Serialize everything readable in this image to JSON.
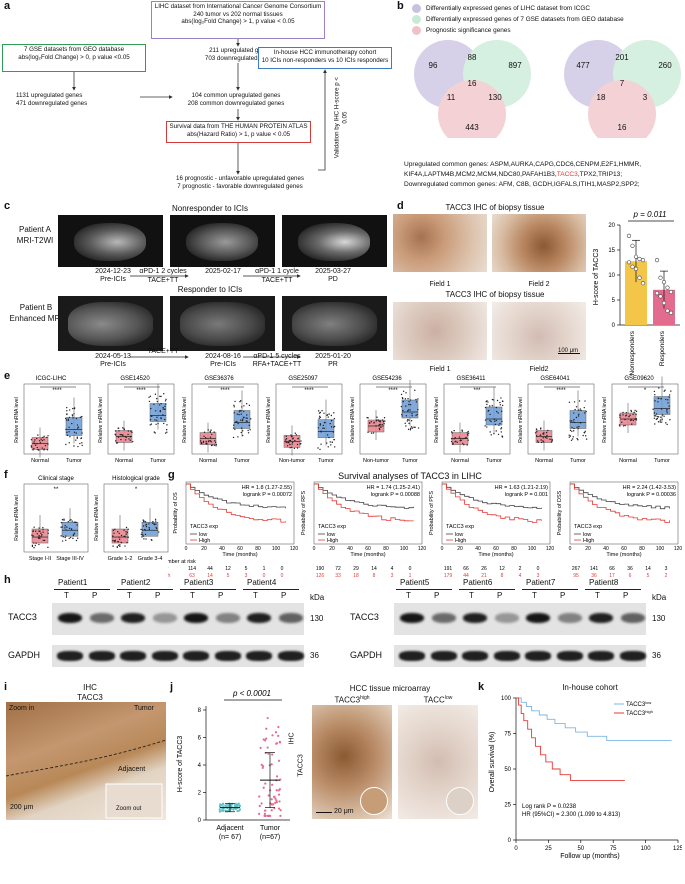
{
  "panels": {
    "a": "a",
    "b": "b",
    "c": "c",
    "d": "d",
    "e": "e",
    "f": "f",
    "g": "g",
    "h": "h",
    "i": "i",
    "j": "j",
    "k": "k"
  },
  "a": {
    "licc": [
      "LIHC dataset from International Cancer Genome Consortium",
      "240 tumor vs 202 normal tissues",
      "abs(log₂Fold Change) > 1, p value < 0.05"
    ],
    "gse": [
      "7 GSE datasets from GEO database",
      "abs(log₂Fold Change) > 0, p value <0.05"
    ],
    "gse_counts": [
      "1131 upregulated genes",
      "471 downregulated genes"
    ],
    "icgc_counts": [
      "211 upregulated genes",
      "703 downregulated genes"
    ],
    "common": [
      "104 common upregulated genes",
      "208 common downregulated genes"
    ],
    "hpa": [
      "Survival data from THE HUMAN PROTEIN ATLAS",
      "abs(Hazard Ratio) > 1, p value < 0.05"
    ],
    "prog": [
      "16 prognostic - unfavorable upregulated genes",
      "7 prognostic - favorable downregulated genes"
    ],
    "cohort": [
      "In-house HCC immunotherapy cohort",
      "10 ICIs non-responders vs 10 ICIs responders"
    ],
    "vertical": "Validation by IHC H-score p < 0.05"
  },
  "b": {
    "legend": [
      "Differentially expressed genes of LIHC dataset from ICGC",
      "Differentially expressed genes of 7 GSE datasets from GEO database",
      "Prognostic significance genes"
    ],
    "legend_colors": [
      "#c9c1e2",
      "#c8ebd6",
      "#efc2c8"
    ],
    "venn1": [
      "96",
      "88",
      "897",
      "16",
      "11",
      "130",
      "443"
    ],
    "venn2": [
      "477",
      "201",
      "260",
      "7",
      "18",
      "3",
      "16"
    ],
    "genes_up": "Upregulated common genes: ASPM,AURKA,CAPG,CDC6,CENPM,E2F1,HMMR,",
    "genes_up2a": "KIF4A,LAPTM4B,MCM2,MCM4,NDC80,PAFAH1B3,",
    "genes_up2b": "TACC3",
    "genes_up2c": ",TPX2,TRIP13;",
    "genes_down": "Downregulated common genes: AFM, C8B, GCDH,IGFALS,ITIH1,MASP2,SPP2;"
  },
  "c": {
    "title1": "Nonresponder to ICIs",
    "title2": "Responder to ICIs",
    "patientA": [
      "Patient A",
      "MRI-T2WI"
    ],
    "patientB": [
      "Patient B",
      "Enhanced MRI"
    ],
    "tlA": {
      "d1": "2024-12-23",
      "l1": "Pre-ICIs",
      "a1": "αPD-1 2 cycles",
      "b1": "TACE+TT",
      "d2": "2025-02-17",
      "a2": "αPD-1 1 cycle",
      "b2": "TACE+TT",
      "d3": "2025-03-27",
      "l3": "PD"
    },
    "tlB": {
      "d1": "2024-05-13",
      "l1": "Pre-ICIs",
      "b1": "TACE+TT",
      "d2": "2024-08-16",
      "l2": "Pre-ICIs",
      "a2": "αPD-1 5 cycles",
      "b2": "RFA+TACE+TT",
      "d3": "2025-01-20",
      "l3": "PR"
    }
  },
  "d": {
    "title1": "TACC3 IHC of biopsy tissue",
    "title2": "TACC3 IHC of biopsy tissue",
    "f1": "Field 1",
    "f2": "Field 2",
    "f3": "Field 1",
    "f4": "Field2",
    "scale": "100 μm",
    "p": "p = 0.011",
    "ylabel": "H-score of TACC3",
    "xcats": [
      "Nonresponders",
      "Responders"
    ]
  },
  "e": {
    "titles": [
      "ICGC-LIHC",
      "GSE14520",
      "GSE36376",
      "GSE25097",
      "GSE54236",
      "GSE36411",
      "GSE64041",
      "GSE09620"
    ],
    "ylabel": "Relative mRNA level",
    "xl": [
      "Normal",
      "Normal",
      "Normal",
      "Non-tumor",
      "Non-tumor",
      "Normal",
      "Normal",
      "Normal"
    ],
    "xr": "Tumor",
    "sig": [
      "****",
      "****",
      "****",
      "****",
      "****",
      "***",
      "****",
      "*"
    ]
  },
  "f": {
    "titles": [
      "Clinical stage",
      "Histological grade"
    ],
    "ylabel": "Relative mRNA level",
    "x1": [
      "Stage I-II",
      "Stage III-IV"
    ],
    "x2": [
      "Grade 1-2",
      "Grade 3-4"
    ],
    "sig": [
      "**",
      "*"
    ]
  },
  "g": {
    "title": "Survival analyses of TACC3 in LIHC",
    "plots": [
      {
        "hr": "HR = 1.8 (1.27-2.55)",
        "lr": "logrank P = 0.00072",
        "y": "Probability of OS",
        "low": [
          "114",
          "44",
          "12",
          "5",
          "1",
          "0"
        ],
        "high": [
          "63",
          "14",
          "5",
          "3",
          "0",
          "0"
        ],
        "ticks": [
          "0",
          "20",
          "40",
          "60",
          "80",
          "100",
          "120"
        ]
      },
      {
        "hr": "HR = 1.74 (1.25-2.41)",
        "lr": "logrank P = 0.00088",
        "y": "Probability of RFS",
        "low": [
          "190",
          "72",
          "29",
          "14",
          "4",
          "0"
        ],
        "high": [
          "126",
          "33",
          "18",
          "8",
          "3",
          "1"
        ],
        "ticks": [
          "0",
          "20",
          "40",
          "60",
          "80",
          "100",
          "120"
        ]
      },
      {
        "hr": "HR = 1.63 (1.21-2.19)",
        "lr": "logrank P = 0.001",
        "y": "Probability of PFS",
        "low": [
          "191",
          "66",
          "26",
          "12",
          "2",
          "0"
        ],
        "high": [
          "179",
          "44",
          "21",
          "8",
          "4",
          "3"
        ],
        "ticks": [
          "0",
          "20",
          "40",
          "60",
          "80",
          "100",
          "120"
        ]
      },
      {
        "hr": "HR = 2.24 (1.42-3.53)",
        "lr": "logrank P = 0.00036",
        "y": "Probability of DSS",
        "low": [
          "267",
          "141",
          "66",
          "36",
          "14",
          "3"
        ],
        "high": [
          "95",
          "36",
          "17",
          "6",
          "5",
          "2"
        ],
        "ticks": [
          "0",
          "20",
          "40",
          "60",
          "80",
          "100",
          "120"
        ]
      }
    ],
    "legend": [
      "TACC3 exp",
      "low",
      "High"
    ],
    "xlabel": "Time (months)",
    "risk": [
      "Number at risk",
      "low",
      "high"
    ]
  },
  "h": {
    "patients": [
      "Patient1",
      "Patient2",
      "Patient3",
      "Patient4",
      "Patient5",
      "Patient6",
      "Patient7",
      "Patient8"
    ],
    "T": "T",
    "P": "P",
    "kda": "kDa",
    "tacc3": "TACC3",
    "gapdh": "GAPDH",
    "m1": "130",
    "m2": "36"
  },
  "i": {
    "title": "IHC",
    "sub": "TACC3",
    "zoomin": "Zoom in",
    "tumor": "Tumor",
    "adjacent": "Adjacent",
    "zoomout": "Zoom out",
    "scale": "200 μm"
  },
  "j": {
    "p": "p < 0.0001",
    "ylabel": "H-score of TACC3",
    "x": [
      "Adjacent",
      "Tumor"
    ],
    "n": [
      "(n= 67)",
      "(n=67)"
    ],
    "yticks": [
      "0",
      "2",
      "4",
      "6",
      "8"
    ],
    "tma": "HCC tissue microarray",
    "high": "TACC3",
    "highsup": "high",
    "low": "TACC",
    "lowsup": "low",
    "ihc": "IHC",
    "tacc3": "TACC3",
    "scale": "20 μm"
  },
  "k": {
    "title": "In-house cohort",
    "ylabel": "Overall survival (%)",
    "xlabel": "Follow up (months)",
    "leg": [
      "TACC3",
      "low",
      "TACC3",
      "high"
    ],
    "lr": "Log rank P = 0.0238",
    "hr": "HR (95%CI) = 2.300 (1.099 to 4.813)",
    "xt": [
      "0",
      "25",
      "50",
      "75",
      "100",
      "125"
    ],
    "yt": [
      "0",
      "25",
      "50",
      "75",
      "100"
    ]
  },
  "colors": {
    "normal": "#e8808a",
    "tumor": "#6b9bd6",
    "low": "#555555",
    "high": "#e53935",
    "responders": "#e26b8e",
    "nonresp": "#f3c64a"
  }
}
